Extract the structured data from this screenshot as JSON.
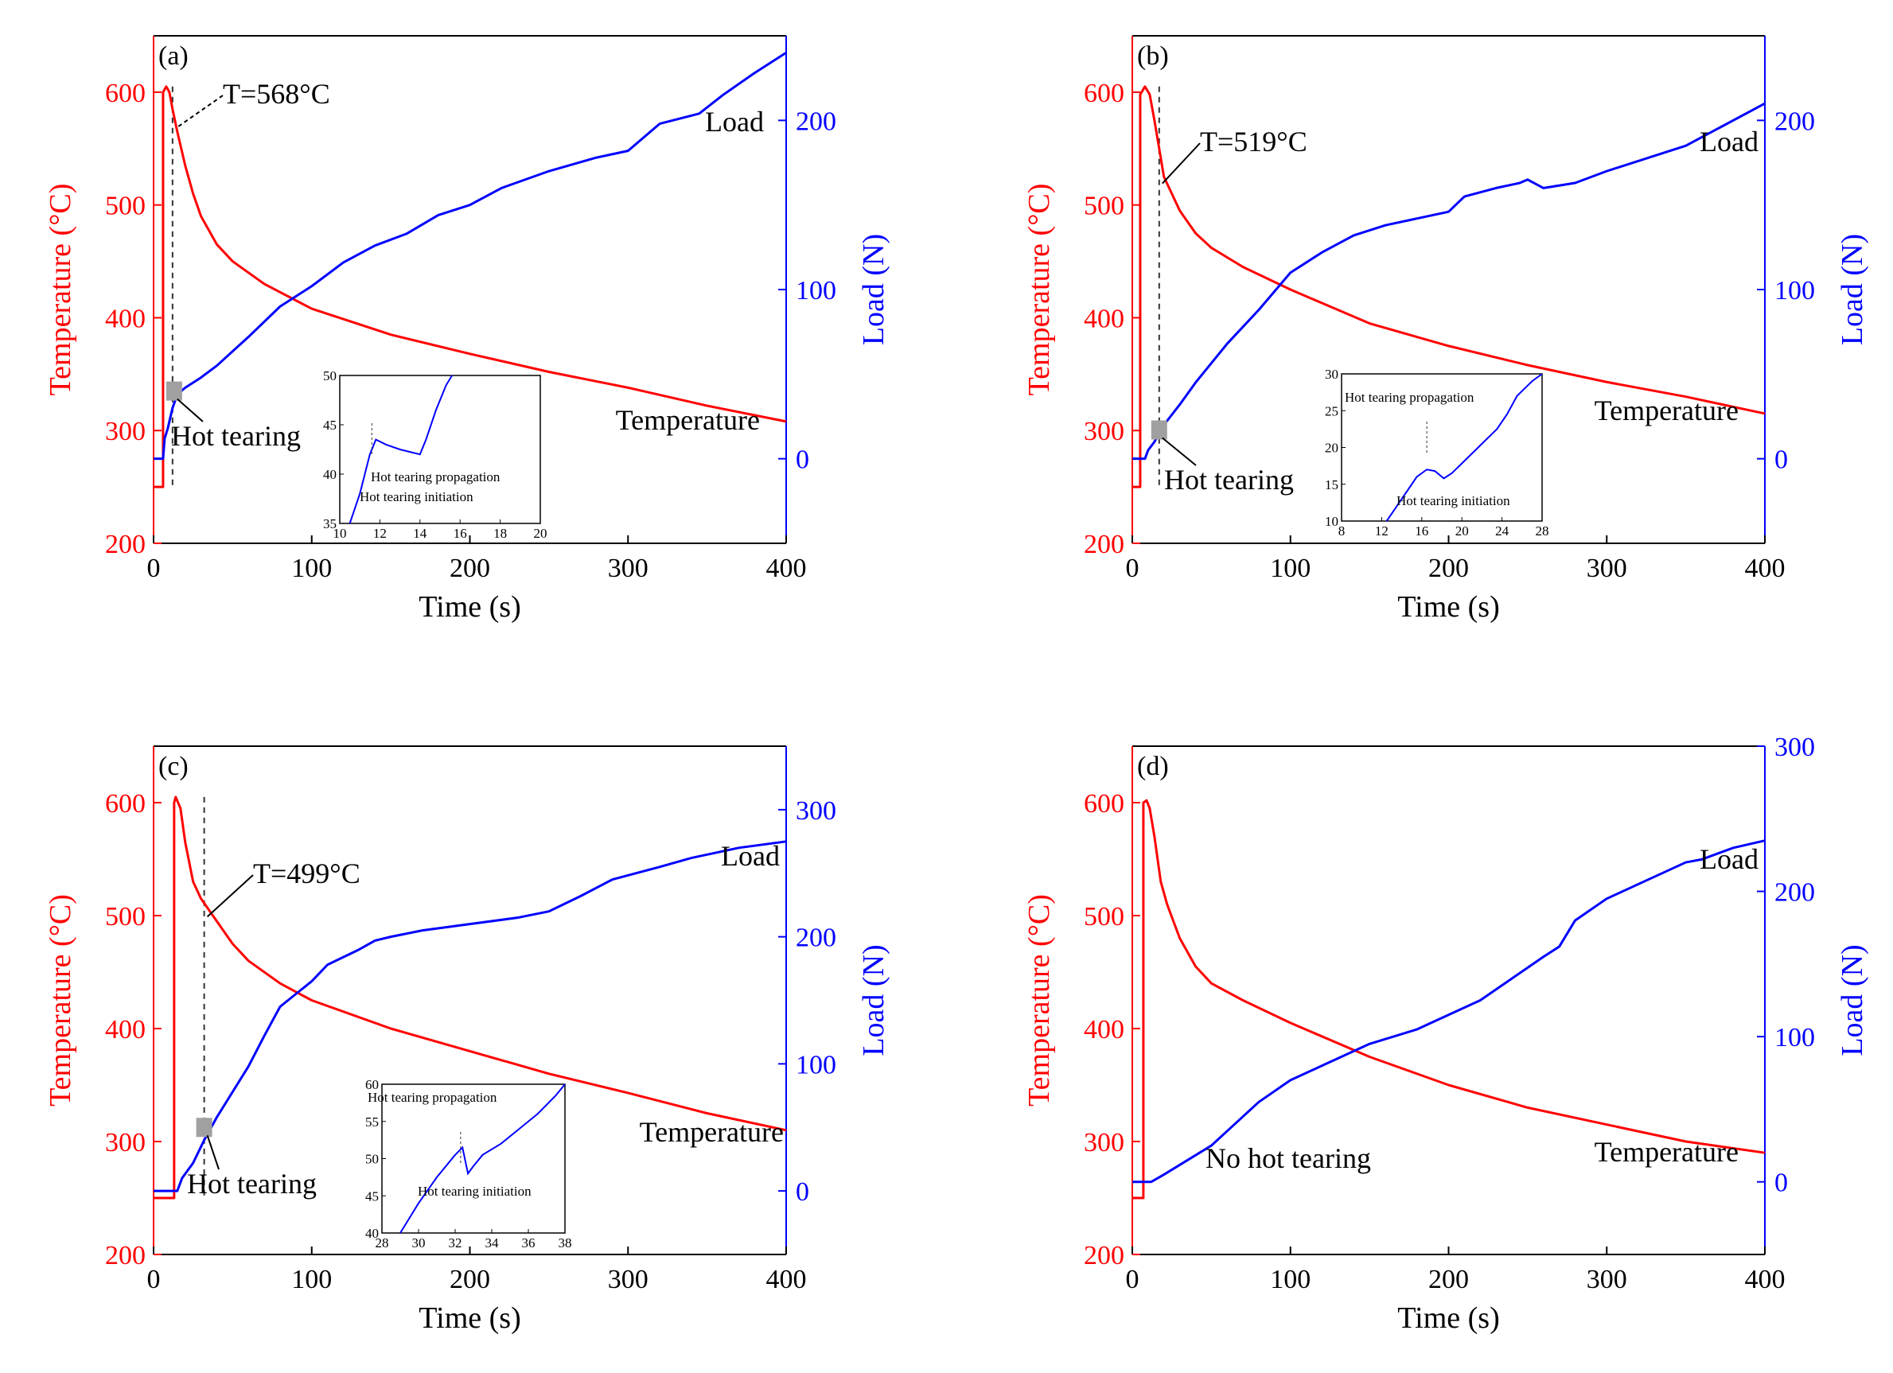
{
  "colors": {
    "temperature": "#ff0000",
    "load": "#0000ff",
    "axis": "#000000",
    "marker": "#a0a0a0"
  },
  "panels": [
    {
      "label": "(a)",
      "xlabel": "Time (s)",
      "ylabel_left": "Temperature (°C)",
      "ylabel_right": "Load (N)",
      "xlim": [
        0,
        400
      ],
      "ylim_left": [
        200,
        650
      ],
      "ylim_right": [
        -50,
        250
      ],
      "x_ticks": [
        0,
        100,
        200,
        300,
        400
      ],
      "y_ticks_left": [
        200,
        300,
        400,
        500,
        600
      ],
      "y_ticks_right": [
        0,
        100,
        200
      ],
      "series_names": {
        "temperature": "Temperature",
        "load": "Load"
      },
      "temperature": [
        [
          0,
          250
        ],
        [
          6,
          250
        ],
        [
          6,
          600
        ],
        [
          8,
          605
        ],
        [
          10,
          600
        ],
        [
          12,
          585
        ],
        [
          15,
          565
        ],
        [
          20,
          535
        ],
        [
          25,
          510
        ],
        [
          30,
          490
        ],
        [
          40,
          465
        ],
        [
          50,
          450
        ],
        [
          70,
          430
        ],
        [
          100,
          408
        ],
        [
          150,
          385
        ],
        [
          200,
          368
        ],
        [
          250,
          352
        ],
        [
          300,
          338
        ],
        [
          350,
          322
        ],
        [
          400,
          308
        ]
      ],
      "load": [
        [
          0,
          0
        ],
        [
          6,
          0
        ],
        [
          7,
          12
        ],
        [
          9,
          18
        ],
        [
          12,
          30
        ],
        [
          15,
          38
        ],
        [
          20,
          42
        ],
        [
          30,
          48
        ],
        [
          40,
          55
        ],
        [
          60,
          72
        ],
        [
          80,
          90
        ],
        [
          100,
          102
        ],
        [
          120,
          116
        ],
        [
          140,
          126
        ],
        [
          160,
          133
        ],
        [
          180,
          144
        ],
        [
          200,
          150
        ],
        [
          220,
          160
        ],
        [
          250,
          170
        ],
        [
          280,
          178
        ],
        [
          300,
          182
        ],
        [
          310,
          190
        ],
        [
          320,
          198
        ],
        [
          345,
          204
        ],
        [
          360,
          215
        ],
        [
          380,
          228
        ],
        [
          400,
          240
        ]
      ],
      "dash_x": 12,
      "marker_xy": [
        13,
        40
      ],
      "callout": {
        "text": "T=568°C",
        "at": [
          12,
          568
        ]
      },
      "hot_label": "Hot tearing",
      "temp_label": "Temperature",
      "load_label": "Load",
      "inset": {
        "xlim": [
          10,
          20
        ],
        "ylim": [
          35,
          50
        ],
        "x_ticks": [
          10,
          12,
          14,
          16,
          18,
          20
        ],
        "y_ticks": [
          35,
          40,
          45,
          50
        ],
        "curve": [
          [
            10.5,
            35
          ],
          [
            11,
            38
          ],
          [
            11.5,
            42
          ],
          [
            11.8,
            43.5
          ],
          [
            12.3,
            43
          ],
          [
            13,
            42.5
          ],
          [
            13.6,
            42.2
          ],
          [
            14,
            42
          ],
          [
            14.3,
            43.5
          ],
          [
            14.8,
            46.5
          ],
          [
            15.3,
            49
          ],
          [
            15.6,
            50
          ]
        ],
        "dash_x": 11.6,
        "ann_initiation": "Hot tearing initiation",
        "ann_propagation": "Hot tearing propagation"
      }
    },
    {
      "label": "(b)",
      "xlabel": "Time (s)",
      "ylabel_left": "Temperature (°C)",
      "ylabel_right": "Load (N)",
      "xlim": [
        0,
        400
      ],
      "ylim_left": [
        200,
        650
      ],
      "ylim_right": [
        -50,
        250
      ],
      "x_ticks": [
        0,
        100,
        200,
        300,
        400
      ],
      "y_ticks_left": [
        200,
        300,
        400,
        500,
        600
      ],
      "y_ticks_right": [
        0,
        100,
        200
      ],
      "series_names": {
        "temperature": "Temperature",
        "load": "Load"
      },
      "temperature": [
        [
          0,
          250
        ],
        [
          5,
          250
        ],
        [
          5,
          598
        ],
        [
          8,
          605
        ],
        [
          11,
          598
        ],
        [
          14,
          575
        ],
        [
          17,
          550
        ],
        [
          20,
          525
        ],
        [
          25,
          510
        ],
        [
          30,
          495
        ],
        [
          40,
          475
        ],
        [
          50,
          462
        ],
        [
          70,
          445
        ],
        [
          100,
          425
        ],
        [
          150,
          395
        ],
        [
          200,
          375
        ],
        [
          250,
          358
        ],
        [
          300,
          343
        ],
        [
          350,
          330
        ],
        [
          400,
          315
        ]
      ],
      "load": [
        [
          0,
          0
        ],
        [
          8,
          0
        ],
        [
          10,
          5
        ],
        [
          14,
          10
        ],
        [
          17,
          15
        ],
        [
          20,
          20
        ],
        [
          30,
          32
        ],
        [
          40,
          45
        ],
        [
          60,
          68
        ],
        [
          80,
          88
        ],
        [
          100,
          110
        ],
        [
          120,
          122
        ],
        [
          140,
          132
        ],
        [
          160,
          138
        ],
        [
          180,
          142
        ],
        [
          200,
          146
        ],
        [
          210,
          155
        ],
        [
          230,
          160
        ],
        [
          245,
          163
        ],
        [
          250,
          165
        ],
        [
          260,
          160
        ],
        [
          280,
          163
        ],
        [
          300,
          170
        ],
        [
          350,
          185
        ],
        [
          400,
          210
        ]
      ],
      "dash_x": 17,
      "marker_xy": [
        17,
        17
      ],
      "callout": {
        "text": "T=519°C",
        "at": [
          17,
          519
        ]
      },
      "hot_label": "Hot tearing",
      "temp_label": "Temperature",
      "load_label": "Load",
      "inset": {
        "xlim": [
          8,
          28
        ],
        "ylim": [
          10,
          30
        ],
        "x_ticks": [
          8,
          12,
          16,
          20,
          24,
          28
        ],
        "y_ticks": [
          10,
          15,
          20,
          25,
          30
        ],
        "curve": [
          [
            12.5,
            10
          ],
          [
            14,
            13
          ],
          [
            15.5,
            16
          ],
          [
            16.5,
            17
          ],
          [
            17.3,
            16.8
          ],
          [
            18.2,
            15.8
          ],
          [
            19,
            16.5
          ],
          [
            20.5,
            18.5
          ],
          [
            22,
            20.5
          ],
          [
            23.5,
            22.5
          ],
          [
            24.5,
            24.5
          ],
          [
            25.5,
            27
          ],
          [
            27,
            29
          ],
          [
            28,
            30
          ]
        ],
        "dash_x": 16.5,
        "ann_initiation": "Hot tearing initiation",
        "ann_propagation": "Hot tearing propagation"
      }
    },
    {
      "label": "(c)",
      "xlabel": "Time (s)",
      "ylabel_left": "Temperature (°C)",
      "ylabel_right": "Load (N)",
      "xlim": [
        0,
        400
      ],
      "ylim_left": [
        200,
        650
      ],
      "ylim_right": [
        -50,
        350
      ],
      "x_ticks": [
        0,
        100,
        200,
        300,
        400
      ],
      "y_ticks_left": [
        200,
        300,
        400,
        500,
        600
      ],
      "y_ticks_right": [
        0,
        100,
        200,
        300
      ],
      "series_names": {
        "temperature": "Temperature",
        "load": "Load"
      },
      "temperature": [
        [
          0,
          250
        ],
        [
          13,
          250
        ],
        [
          13,
          600
        ],
        [
          14,
          605
        ],
        [
          17,
          595
        ],
        [
          20,
          565
        ],
        [
          25,
          530
        ],
        [
          30,
          515
        ],
        [
          40,
          495
        ],
        [
          50,
          475
        ],
        [
          60,
          460
        ],
        [
          80,
          440
        ],
        [
          100,
          425
        ],
        [
          150,
          400
        ],
        [
          200,
          380
        ],
        [
          250,
          360
        ],
        [
          300,
          343
        ],
        [
          350,
          325
        ],
        [
          400,
          310
        ]
      ],
      "load": [
        [
          0,
          0
        ],
        [
          15,
          0
        ],
        [
          18,
          10
        ],
        [
          25,
          22
        ],
        [
          32,
          40
        ],
        [
          40,
          58
        ],
        [
          50,
          78
        ],
        [
          60,
          98
        ],
        [
          70,
          122
        ],
        [
          80,
          145
        ],
        [
          90,
          155
        ],
        [
          100,
          165
        ],
        [
          110,
          178
        ],
        [
          130,
          190
        ],
        [
          140,
          197
        ],
        [
          150,
          200
        ],
        [
          170,
          205
        ],
        [
          200,
          210
        ],
        [
          230,
          215
        ],
        [
          250,
          220
        ],
        [
          270,
          232
        ],
        [
          290,
          245
        ],
        [
          320,
          255
        ],
        [
          340,
          262
        ],
        [
          370,
          270
        ],
        [
          400,
          275
        ]
      ],
      "dash_x": 32,
      "marker_xy": [
        32,
        50
      ],
      "callout": {
        "text": "T=499°C",
        "at": [
          32,
          499
        ]
      },
      "hot_label": "Hot tearing",
      "temp_label": "Temperature",
      "load_label": "Load",
      "inset": {
        "xlim": [
          28,
          38
        ],
        "ylim": [
          40,
          60
        ],
        "x_ticks": [
          28,
          30,
          32,
          34,
          36,
          38
        ],
        "y_ticks": [
          40,
          45,
          50,
          55,
          60
        ],
        "curve": [
          [
            29,
            40
          ],
          [
            30,
            44
          ],
          [
            31,
            47.5
          ],
          [
            32,
            50.5
          ],
          [
            32.4,
            51.5
          ],
          [
            32.7,
            48
          ],
          [
            33,
            49
          ],
          [
            33.5,
            50.5
          ],
          [
            34.5,
            52
          ],
          [
            35.5,
            54
          ],
          [
            36.5,
            56
          ],
          [
            37.5,
            58.5
          ],
          [
            38,
            60
          ]
        ],
        "dash_x": 32.3,
        "ann_initiation": "Hot tearing initiation",
        "ann_propagation": "Hot tearing propagation"
      }
    },
    {
      "label": "(d)",
      "xlabel": "Time (s)",
      "ylabel_left": "Temperature (°C)",
      "ylabel_right": "Load (N)",
      "xlim": [
        0,
        400
      ],
      "ylim_left": [
        200,
        650
      ],
      "ylim_right": [
        -50,
        300
      ],
      "x_ticks": [
        0,
        100,
        200,
        300,
        400
      ],
      "y_ticks_left": [
        200,
        300,
        400,
        500,
        600
      ],
      "y_ticks_right": [
        0,
        100,
        200,
        300
      ],
      "series_names": {
        "temperature": "Temperature",
        "load": "Load"
      },
      "temperature": [
        [
          0,
          250
        ],
        [
          7,
          250
        ],
        [
          7,
          600
        ],
        [
          9,
          602
        ],
        [
          11,
          595
        ],
        [
          14,
          570
        ],
        [
          18,
          530
        ],
        [
          22,
          510
        ],
        [
          30,
          480
        ],
        [
          40,
          455
        ],
        [
          50,
          440
        ],
        [
          70,
          425
        ],
        [
          100,
          405
        ],
        [
          150,
          375
        ],
        [
          200,
          350
        ],
        [
          250,
          330
        ],
        [
          300,
          315
        ],
        [
          350,
          300
        ],
        [
          400,
          290
        ]
      ],
      "load": [
        [
          0,
          0
        ],
        [
          12,
          0
        ],
        [
          20,
          5
        ],
        [
          35,
          15
        ],
        [
          50,
          25
        ],
        [
          60,
          35
        ],
        [
          70,
          45
        ],
        [
          80,
          55
        ],
        [
          100,
          70
        ],
        [
          120,
          80
        ],
        [
          140,
          90
        ],
        [
          150,
          95
        ],
        [
          180,
          105
        ],
        [
          200,
          115
        ],
        [
          220,
          125
        ],
        [
          240,
          140
        ],
        [
          260,
          155
        ],
        [
          270,
          162
        ],
        [
          280,
          180
        ],
        [
          300,
          195
        ],
        [
          320,
          205
        ],
        [
          340,
          215
        ],
        [
          350,
          220
        ],
        [
          360,
          222
        ],
        [
          380,
          230
        ],
        [
          400,
          235
        ]
      ],
      "no_hot_label": "No hot tearing",
      "temp_label": "Temperature",
      "load_label": "Load"
    }
  ]
}
